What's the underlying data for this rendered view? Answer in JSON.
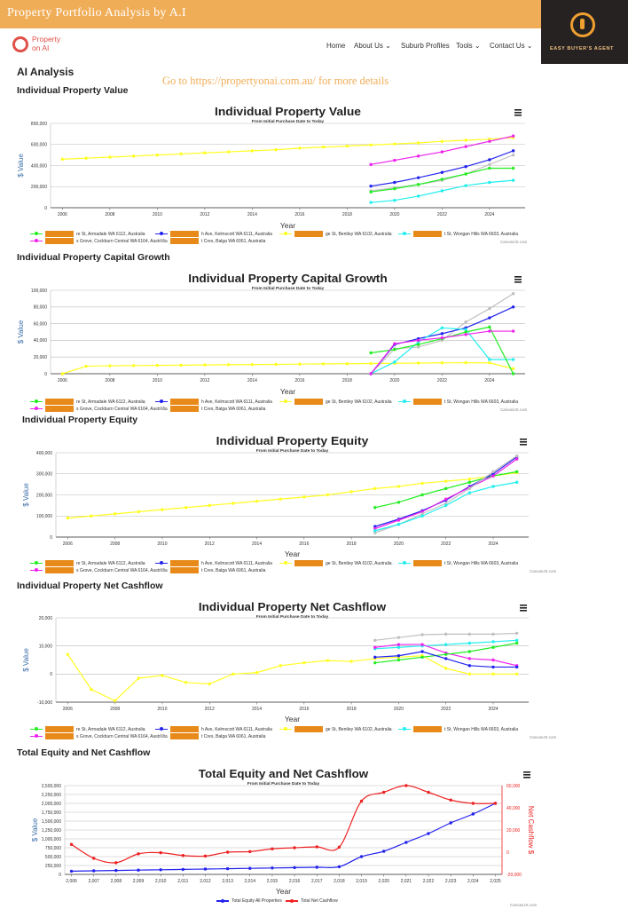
{
  "header": {
    "title": "Property Portfolio Analysis by A.I",
    "badge_text": "EASY BUYER'S AGENT"
  },
  "logo": {
    "line1": "Property",
    "line2": "on AI"
  },
  "nav": [
    "Home",
    "About Us ⌄",
    "Suburb Profiles",
    "Tools ⌄",
    "Contact Us ⌄"
  ],
  "page": {
    "heading": "AI Analysis",
    "goto": "Go to https://propertyonai.com.au/ for more details"
  },
  "colors": {
    "green": "#22ee22",
    "blue": "#2222ee",
    "yellow": "#ffff22",
    "cyan": "#22eeee",
    "magenta": "#ee22ee",
    "grey": "#c0c0c0",
    "red": "#ee2222",
    "accent": "#f0ad57"
  },
  "legend": {
    "green": "re St, Armadale WA 6112, Australia",
    "blue": "h Ave, Kelmscott WA 6111, Australia",
    "yellow": "ge St, Bentley WA 6102, Australia",
    "cyan": "t St, Wongan Hills WA 6603, Australia",
    "magenta": "s Grove, Cockburn Central WA 6164, Australia",
    "grey": "t Cres, Balga WA 6061, Australia",
    "total_equity": "Total Equity All Properties",
    "total_cash": "Total Net Cashflow"
  },
  "credit": "CanvasJS.com",
  "chart_data": [
    {
      "type": "line",
      "section": "Individual Property Value",
      "title": "Individual Property Value",
      "subtitle": "From Initial Purchase Date to Today",
      "xlabel": "Year",
      "ylabel": "$ Value",
      "x_ticks": [
        "2006",
        "2008",
        "2010",
        "2012",
        "2014",
        "2016",
        "2018",
        "2020",
        "2022",
        "2024"
      ],
      "y_ticks": [
        "0",
        "200,000",
        "400,000",
        "600,000",
        "800,000"
      ],
      "ylim": [
        0,
        800000
      ],
      "series": [
        {
          "key": "yellow",
          "x": [
            2006,
            2007,
            2008,
            2009,
            2010,
            2011,
            2012,
            2013,
            2014,
            2015,
            2016,
            2017,
            2018,
            2019,
            2020,
            2021,
            2022,
            2023,
            2024,
            2025
          ],
          "y": [
            460000,
            470000,
            480000,
            490000,
            500000,
            510000,
            520000,
            530000,
            540000,
            550000,
            565000,
            575000,
            585000,
            595000,
            605000,
            615000,
            630000,
            640000,
            650000,
            665000
          ]
        },
        {
          "key": "magenta",
          "x": [
            2019,
            2020,
            2021,
            2022,
            2023,
            2024,
            2025
          ],
          "y": [
            410000,
            450000,
            490000,
            530000,
            580000,
            630000,
            680000
          ]
        },
        {
          "key": "blue",
          "x": [
            2019,
            2020,
            2021,
            2022,
            2023,
            2024,
            2025
          ],
          "y": [
            205000,
            240000,
            285000,
            335000,
            390000,
            455000,
            540000
          ]
        },
        {
          "key": "grey",
          "x": [
            2019,
            2020,
            2021,
            2022,
            2023,
            2024,
            2025
          ],
          "y": [
            160000,
            190000,
            220000,
            260000,
            320000,
            410000,
            500000
          ]
        },
        {
          "key": "green",
          "x": [
            2019,
            2020,
            2021,
            2022,
            2023,
            2024,
            2025
          ],
          "y": [
            150000,
            180000,
            220000,
            270000,
            320000,
            375000,
            375000
          ]
        },
        {
          "key": "cyan",
          "x": [
            2019,
            2020,
            2021,
            2022,
            2023,
            2024,
            2025
          ],
          "y": [
            50000,
            70000,
            110000,
            160000,
            210000,
            240000,
            260000
          ]
        }
      ]
    },
    {
      "type": "line",
      "section": "Individual Property Capital Growth",
      "title": "Individual Property Capital Growth",
      "subtitle": "From Initial Purchase Date to Today",
      "xlabel": "Year",
      "ylabel": "$ Value",
      "x_ticks": [
        "2006",
        "2008",
        "2010",
        "2012",
        "2014",
        "2016",
        "2018",
        "2020",
        "2022",
        "2024"
      ],
      "y_ticks": [
        "0",
        "20,000",
        "40,000",
        "60,000",
        "80,000",
        "100,000"
      ],
      "ylim": [
        0,
        100000
      ],
      "series": [
        {
          "key": "yellow",
          "x": [
            2006,
            2007,
            2008,
            2009,
            2010,
            2011,
            2012,
            2013,
            2014,
            2015,
            2016,
            2017,
            2018,
            2019,
            2020,
            2021,
            2022,
            2023,
            2024,
            2025
          ],
          "y": [
            0,
            9000,
            9500,
            9800,
            10000,
            10200,
            10500,
            10800,
            11000,
            11200,
            11500,
            11800,
            12000,
            12200,
            12500,
            12800,
            13000,
            13200,
            13000,
            6000
          ]
        },
        {
          "key": "grey",
          "x": [
            2019,
            2020,
            2021,
            2022,
            2023,
            2024,
            2025
          ],
          "y": [
            0,
            30000,
            32000,
            40000,
            62000,
            78000,
            96000
          ]
        },
        {
          "key": "blue",
          "x": [
            2019,
            2020,
            2021,
            2022,
            2023,
            2024,
            2025
          ],
          "y": [
            0,
            35000,
            42000,
            48000,
            55000,
            67000,
            80000
          ]
        },
        {
          "key": "cyan",
          "x": [
            2019,
            2020,
            2021,
            2022,
            2023,
            2024,
            2025
          ],
          "y": [
            0,
            14000,
            38000,
            55000,
            53000,
            17000,
            17000
          ]
        },
        {
          "key": "green",
          "x": [
            2019,
            2020,
            2021,
            2022,
            2023,
            2024,
            2025
          ],
          "y": [
            25000,
            29000,
            35000,
            42000,
            50000,
            56000,
            0
          ]
        },
        {
          "key": "magenta",
          "x": [
            2019,
            2020,
            2021,
            2022,
            2023,
            2024,
            2025
          ],
          "y": [
            0,
            36000,
            40000,
            43000,
            47000,
            51000,
            51000
          ]
        }
      ]
    },
    {
      "type": "line",
      "section": "Individual Property Equity",
      "title": "Individual Property Equity",
      "subtitle": "From Initial Purchase Date to Today",
      "xlabel": "Year",
      "ylabel": "$ Value",
      "x_ticks": [
        "2006",
        "2008",
        "2010",
        "2012",
        "2014",
        "2016",
        "2018",
        "2020",
        "2022",
        "2024"
      ],
      "y_ticks": [
        "0",
        "100,000",
        "200,000",
        "300,000",
        "400,000"
      ],
      "ylim": [
        0,
        400000
      ],
      "series": [
        {
          "key": "yellow",
          "x": [
            2006,
            2007,
            2008,
            2009,
            2010,
            2011,
            2012,
            2013,
            2014,
            2015,
            2016,
            2017,
            2018,
            2019,
            2020,
            2021,
            2022,
            2023,
            2024,
            2025
          ],
          "y": [
            90000,
            100000,
            110000,
            120000,
            130000,
            140000,
            150000,
            160000,
            170000,
            180000,
            190000,
            200000,
            215000,
            230000,
            240000,
            255000,
            265000,
            275000,
            290000,
            305000
          ]
        },
        {
          "key": "green",
          "x": [
            2019,
            2020,
            2021,
            2022,
            2023,
            2024,
            2025
          ],
          "y": [
            140000,
            165000,
            200000,
            230000,
            260000,
            290000,
            310000
          ]
        },
        {
          "key": "blue",
          "x": [
            2019,
            2020,
            2021,
            2022,
            2023,
            2024,
            2025
          ],
          "y": [
            50000,
            85000,
            125000,
            175000,
            240000,
            300000,
            380000
          ]
        },
        {
          "key": "magenta",
          "x": [
            2019,
            2020,
            2021,
            2022,
            2023,
            2024,
            2025
          ],
          "y": [
            40000,
            80000,
            120000,
            180000,
            235000,
            290000,
            370000
          ]
        },
        {
          "key": "grey",
          "x": [
            2019,
            2020,
            2021,
            2022,
            2023,
            2024,
            2025
          ],
          "y": [
            20000,
            60000,
            110000,
            160000,
            230000,
            310000,
            385000
          ]
        },
        {
          "key": "cyan",
          "x": [
            2019,
            2020,
            2021,
            2022,
            2023,
            2024,
            2025
          ],
          "y": [
            30000,
            60000,
            100000,
            150000,
            210000,
            240000,
            260000
          ]
        }
      ]
    },
    {
      "type": "line",
      "section": "Individual Property Net Cashflow",
      "title": "Individual Property Net Cashflow",
      "subtitle": "From Initial Purchase Date to Today",
      "xlabel": "Year",
      "ylabel": "$ Value",
      "x_ticks": [
        "2006",
        "2008",
        "2010",
        "2012",
        "2014",
        "2016",
        "2018",
        "2020",
        "2022",
        "2024"
      ],
      "y_ticks": [
        "-10,000",
        "0",
        "10,000",
        "20,000"
      ],
      "ylim": [
        -10000,
        20000
      ],
      "series": [
        {
          "key": "yellow",
          "x": [
            2006,
            2007,
            2008,
            2009,
            2010,
            2011,
            2012,
            2013,
            2014,
            2015,
            2016,
            2017,
            2018,
            2019,
            2020,
            2021,
            2022,
            2023,
            2024,
            2025
          ],
          "y": [
            7000,
            -5500,
            -9500,
            -1500,
            -500,
            -3000,
            -3500,
            0,
            500,
            3000,
            4000,
            4800,
            4500,
            5500,
            6000,
            6500,
            2000,
            0,
            0,
            0
          ]
        },
        {
          "key": "grey",
          "x": [
            2019,
            2020,
            2021,
            2022,
            2023,
            2024,
            2025
          ],
          "y": [
            12000,
            13000,
            14000,
            14200,
            14200,
            14200,
            14500
          ]
        },
        {
          "key": "cyan",
          "x": [
            2019,
            2020,
            2021,
            2022,
            2023,
            2024,
            2025
          ],
          "y": [
            9000,
            9500,
            10000,
            10500,
            11000,
            11500,
            12000
          ]
        },
        {
          "key": "magenta",
          "x": [
            2019,
            2020,
            2021,
            2022,
            2023,
            2024,
            2025
          ],
          "y": [
            9500,
            10500,
            10500,
            7500,
            5500,
            5000,
            3000
          ]
        },
        {
          "key": "green",
          "x": [
            2019,
            2020,
            2021,
            2022,
            2023,
            2024,
            2025
          ],
          "y": [
            4000,
            5000,
            6000,
            7000,
            8000,
            9500,
            11000
          ]
        },
        {
          "key": "blue",
          "x": [
            2019,
            2020,
            2021,
            2022,
            2023,
            2024,
            2025
          ],
          "y": [
            6000,
            6500,
            8000,
            5500,
            3000,
            2500,
            2500
          ]
        }
      ]
    },
    {
      "type": "line",
      "section": "Total Equity and Net Cashflow",
      "title": "Total Equity and Net Cashflow",
      "subtitle": "From Initial Purchase Date to Today",
      "xlabel": "Year",
      "ylabel": "$ Value",
      "y2label": "Net Cashflow $",
      "x_ticks": [
        "2,006",
        "2,007",
        "2,008",
        "2,009",
        "2,010",
        "2,011",
        "2,012",
        "2,013",
        "2,014",
        "2,015",
        "2,016",
        "2,017",
        "2,018",
        "2,019",
        "2,020",
        "2,021",
        "2,022",
        "2,023",
        "2,024",
        "2,025"
      ],
      "y_ticks": [
        "0",
        "250,000",
        "500,000",
        "750,000",
        "1,000,000",
        "1,250,000",
        "1,500,000",
        "1,750,000",
        "2,000,000",
        "2,250,000",
        "2,500,000"
      ],
      "ylim": [
        0,
        2500000
      ],
      "y2_ticks": [
        "-20,000",
        "0",
        "20,000",
        "40,000",
        "60,000"
      ],
      "y2lim": [
        -20000,
        60000
      ],
      "series": [
        {
          "key": "blue",
          "name": "Total Equity All Properties",
          "axis": "y",
          "x": [
            2006,
            2007,
            2008,
            2009,
            2010,
            2011,
            2012,
            2013,
            2014,
            2015,
            2016,
            2017,
            2018,
            2019,
            2020,
            2021,
            2022,
            2023,
            2024,
            2025
          ],
          "y": [
            90000,
            100000,
            110000,
            120000,
            130000,
            140000,
            150000,
            160000,
            170000,
            180000,
            190000,
            200000,
            215000,
            500000,
            650000,
            900000,
            1150000,
            1450000,
            1700000,
            2000000
          ]
        },
        {
          "key": "red",
          "name": "Total Net Cashflow",
          "axis": "y2",
          "x": [
            2006,
            2007,
            2008,
            2009,
            2010,
            2011,
            2012,
            2013,
            2014,
            2015,
            2016,
            2017,
            2018,
            2019,
            2020,
            2021,
            2022,
            2023,
            2024,
            2025
          ],
          "y": [
            7000,
            -5500,
            -9500,
            -1500,
            -500,
            -3000,
            -3500,
            0,
            500,
            3000,
            4000,
            4800,
            4500,
            46000,
            54000,
            60000,
            54000,
            47000,
            44000,
            44000
          ]
        }
      ]
    }
  ]
}
